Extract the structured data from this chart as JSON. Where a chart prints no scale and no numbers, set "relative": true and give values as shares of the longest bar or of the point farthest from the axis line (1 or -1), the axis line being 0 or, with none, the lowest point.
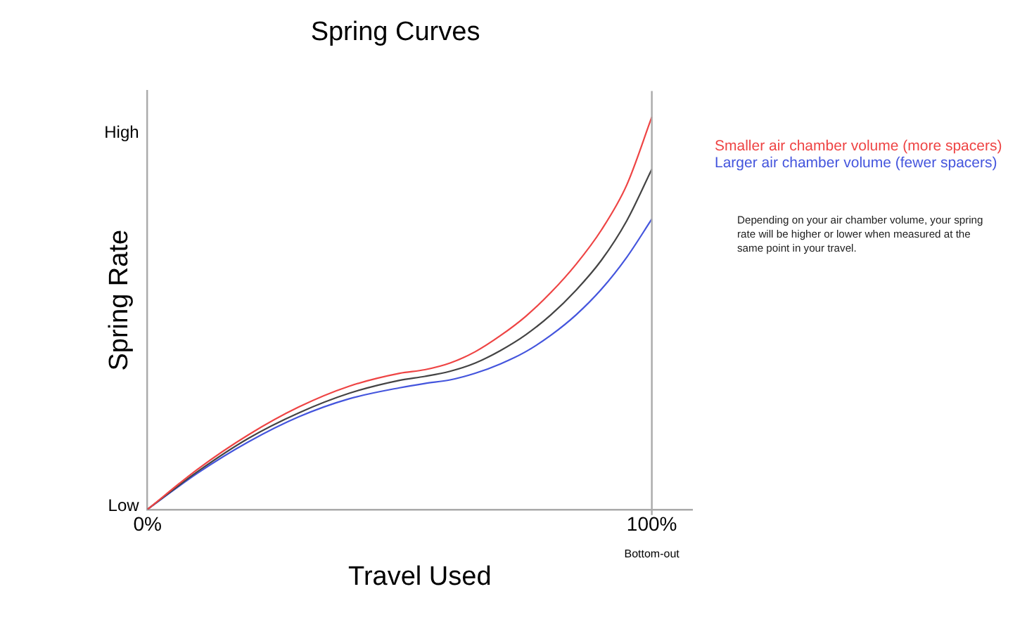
{
  "chart_data": {
    "type": "line",
    "title": "Spring Curves",
    "xlabel": "Travel Used",
    "ylabel": "Spring Rate",
    "relative": true,
    "x": [
      0,
      10,
      20,
      30,
      40,
      50,
      55,
      60,
      65,
      70,
      75,
      80,
      85,
      90,
      95,
      100
    ],
    "series": [
      {
        "name": "Smaller air chamber volume (more spacers)",
        "color": "#ee4444",
        "values": [
          0,
          0.103,
          0.19,
          0.261,
          0.314,
          0.347,
          0.356,
          0.373,
          0.402,
          0.443,
          0.492,
          0.553,
          0.625,
          0.712,
          0.826,
          1
        ]
      },
      {
        "color": "#444444",
        "values": [
          0,
          0.097,
          0.181,
          0.246,
          0.296,
          0.329,
          0.339,
          0.352,
          0.373,
          0.405,
          0.445,
          0.496,
          0.559,
          0.635,
          0.735,
          0.867
        ]
      },
      {
        "name": "Larger air chamber volume (fewer spacers)",
        "color": "#4455dd",
        "values": [
          0,
          0.093,
          0.172,
          0.236,
          0.282,
          0.31,
          0.321,
          0.33,
          0.347,
          0.371,
          0.402,
          0.444,
          0.496,
          0.561,
          0.642,
          0.74
        ]
      }
    ],
    "xlim": [
      0,
      108
    ],
    "xticks": [
      {
        "value": 0,
        "label": "0%"
      },
      {
        "value": 100,
        "label": "100%"
      }
    ],
    "ref_lines": [
      {
        "axis": "x",
        "value": 100,
        "color": "#aaaaaa"
      }
    ],
    "annotations": [
      "Low",
      "High",
      "Bottom-out",
      "Depending on your air chamber volume, your spring rate will be higher or lower when measured at the same point in your travel."
    ],
    "legend": "right",
    "marker": "none",
    "line_style": "solid"
  }
}
